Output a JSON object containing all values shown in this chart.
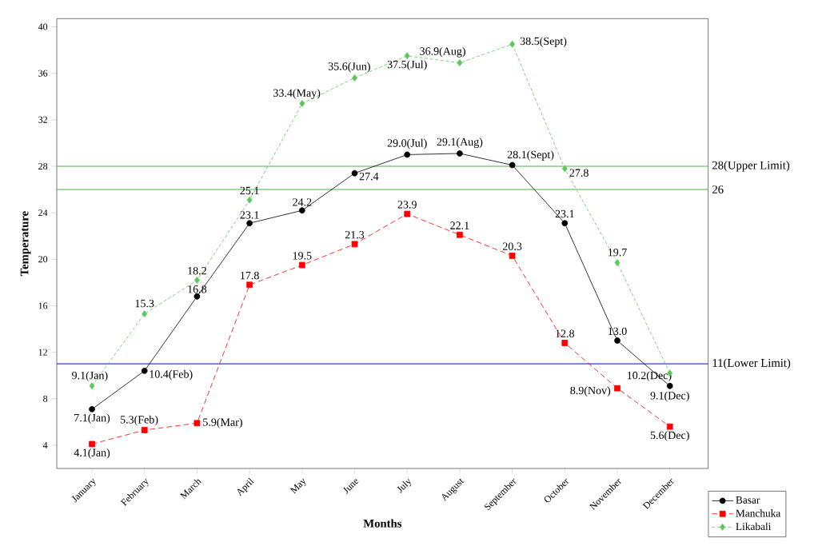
{
  "chart_data": {
    "type": "line",
    "xlabel": "Months",
    "ylabel": "Temperature",
    "categories": [
      "January",
      "February",
      "March",
      "April",
      "May",
      "June",
      "July",
      "August",
      "September",
      "October",
      "November",
      "December"
    ],
    "series": [
      {
        "name": "Basar",
        "color": "#000000",
        "marker": "circle",
        "line_style": "solid",
        "values": [
          7.1,
          10.4,
          16.8,
          23.1,
          24.2,
          27.4,
          29.0,
          29.1,
          28.1,
          23.1,
          13.0,
          9.1
        ],
        "value_labels": [
          "7.1(Jan)",
          "10.4(Feb)",
          "16.8",
          "23.1",
          "24.2",
          "27.4",
          "29.0(Jul)",
          "29.1(Aug)",
          "28.1(Sept)",
          "23.1",
          "13.0",
          "9.1(Dec)"
        ]
      },
      {
        "name": "Manchuka",
        "color": "#ff0000",
        "marker": "square",
        "line_style": "dashed",
        "values": [
          4.1,
          5.3,
          5.9,
          17.8,
          19.5,
          21.3,
          23.9,
          22.1,
          20.3,
          12.8,
          8.9,
          5.6
        ],
        "value_labels": [
          "4.1(Jan)",
          "5.3(Feb)",
          "5.9(Mar)",
          "17.8",
          "19.5",
          "21.3",
          "23.9",
          "22.1",
          "20.3",
          "12.8",
          "8.9(Nov)",
          "5.6(Dec)"
        ]
      },
      {
        "name": "Likabali",
        "color": "#5cc85c",
        "marker": "diamond",
        "line_style": "dashed",
        "values": [
          9.1,
          15.3,
          18.2,
          25.1,
          33.4,
          35.6,
          37.5,
          36.9,
          38.5,
          27.8,
          19.7,
          10.2
        ],
        "value_labels": [
          "9.1(Jan)",
          "15.3",
          "18.2",
          "25.1",
          "33.4(May)",
          "35.6(Jun)",
          "37.5(Jul)",
          "36.9(Aug)",
          "38.5(Sept)",
          "27.8",
          "19.7",
          "10.2(Dec)"
        ]
      }
    ],
    "ylim": [
      2,
      40.7
    ],
    "yticks": [
      4,
      8,
      12,
      16,
      20,
      24,
      28,
      32,
      36,
      40
    ],
    "ref_lines": [
      {
        "axis": "y",
        "value": 28,
        "label": "28(Upper Limit)",
        "color": "#4caf50"
      },
      {
        "axis": "y",
        "value": 26,
        "label": "26",
        "color": "#4caf50"
      },
      {
        "axis": "y",
        "value": 11,
        "label": "11(Lower Limit)",
        "color": "#3333ff"
      }
    ],
    "grid": false,
    "legend": "bottom right"
  }
}
